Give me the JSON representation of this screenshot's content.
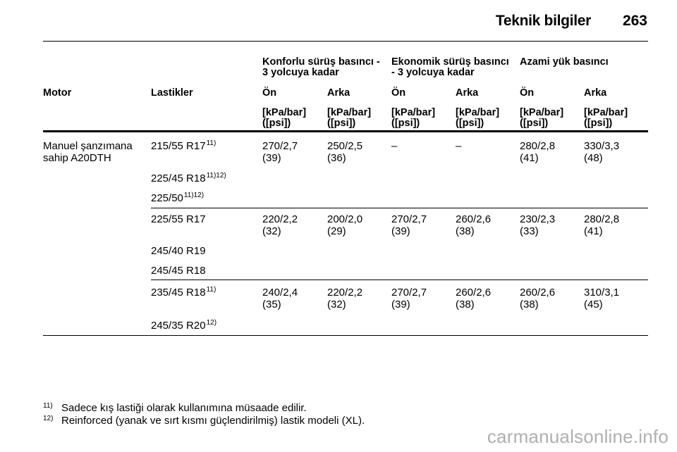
{
  "header": {
    "title": "Teknik bilgiler",
    "page_number": "263"
  },
  "table": {
    "groups": {
      "comfort_line1": "Konforlu sürüş basıncı -",
      "comfort_line2": "3 yolcuya kadar",
      "eco_line1": "Ekonomik sürüş basıncı",
      "eco_line2": "- 3 yolcuya kadar",
      "max_line1": "Azami yük basıncı"
    },
    "columns": {
      "motor": "Motor",
      "tires": "Lastikler",
      "front": "Ön",
      "rear": "Arka"
    },
    "unit_line1": "[kPa/bar]",
    "unit_line2": "([psi])",
    "motor_line1": "Manuel şanzımana",
    "motor_line2": "sahip A20DTH",
    "sections": [
      {
        "tires": [
          {
            "name": "215/55 R17",
            "note": "11)"
          },
          {
            "name": "225/45 R18",
            "note": "11)12)"
          },
          {
            "name": "225/50",
            "note": "11)12)"
          }
        ],
        "values": [
          {
            "main": "270/2,7",
            "psi": "(39)"
          },
          {
            "main": "250/2,5",
            "psi": "(36)"
          },
          {
            "main": "–",
            "psi": ""
          },
          {
            "main": "–",
            "psi": ""
          },
          {
            "main": "280/2,8",
            "psi": "(41)"
          },
          {
            "main": "330/3,3",
            "psi": "(48)"
          }
        ]
      },
      {
        "tires": [
          {
            "name": "225/55 R17",
            "note": ""
          },
          {
            "name": "245/40 R19",
            "note": ""
          },
          {
            "name": "245/45 R18",
            "note": ""
          }
        ],
        "values": [
          {
            "main": "220/2,2",
            "psi": "(32)"
          },
          {
            "main": "200/2,0",
            "psi": "(29)"
          },
          {
            "main": "270/2,7",
            "psi": "(39)"
          },
          {
            "main": "260/2,6",
            "psi": "(38)"
          },
          {
            "main": "230/2,3",
            "psi": "(33)"
          },
          {
            "main": "280/2,8",
            "psi": "(41)"
          }
        ]
      },
      {
        "tires": [
          {
            "name": "235/45 R18",
            "note": "11)"
          },
          {
            "name": "245/35 R20",
            "note": "12)"
          }
        ],
        "values": [
          {
            "main": "240/2,4",
            "psi": "(35)"
          },
          {
            "main": "220/2,2",
            "psi": "(32)"
          },
          {
            "main": "270/2,7",
            "psi": "(39)"
          },
          {
            "main": "260/2,6",
            "psi": "(38)"
          },
          {
            "main": "260/2,6",
            "psi": "(38)"
          },
          {
            "main": "310/3,1",
            "psi": "(45)"
          }
        ]
      }
    ]
  },
  "footnotes": [
    {
      "mark": "11)",
      "text": "Sadece kış lastiği olarak kullanımına müsaade edilir."
    },
    {
      "mark": "12)",
      "text": "Reinforced (yanak ve sırt kısmı güçlendirilmiş) lastik modeli (XL)."
    }
  ],
  "watermark": "carmanualsonline.info"
}
